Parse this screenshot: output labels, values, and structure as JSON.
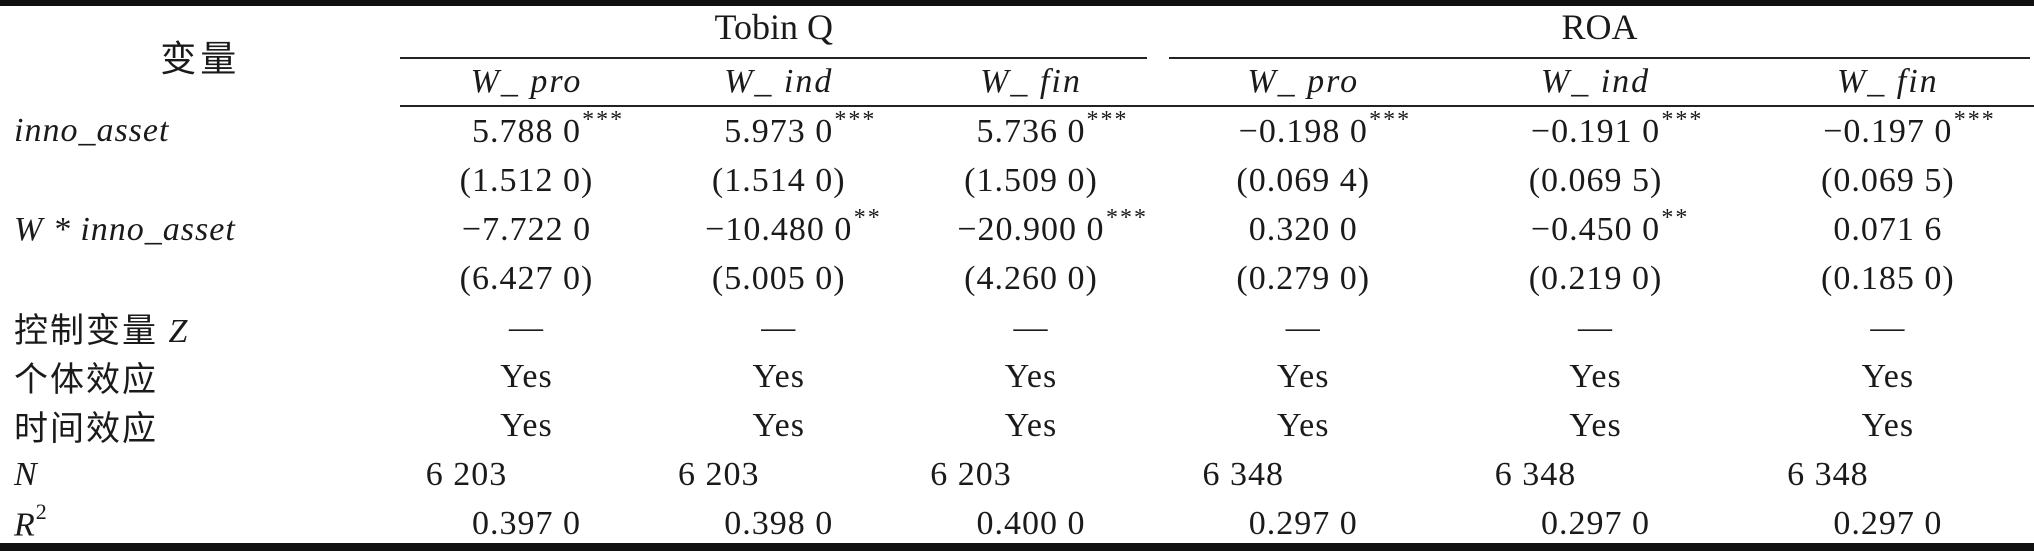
{
  "table": {
    "header": {
      "variable_label": "变量",
      "groups": [
        {
          "label": "Tobin Q"
        },
        {
          "label": "ROA"
        }
      ],
      "subheaders": [
        "W_ pro",
        "W_ ind",
        "W_ fin",
        "W_ pro",
        "W_ ind",
        "W_ fin"
      ]
    },
    "rows": [
      {
        "label_it": "inno_asset",
        "cells": [
          {
            "v": "5.788 0",
            "sup": "***"
          },
          {
            "v": "5.973 0",
            "sup": "***"
          },
          {
            "v": "5.736 0",
            "sup": "***"
          },
          {
            "v": "−0.198 0",
            "sup": "***"
          },
          {
            "v": "−0.191 0",
            "sup": "***"
          },
          {
            "v": "−0.197 0",
            "sup": "***"
          }
        ]
      },
      {
        "cells": [
          {
            "v": "(1.512 0)"
          },
          {
            "v": "(1.514 0)"
          },
          {
            "v": "(1.509 0)"
          },
          {
            "v": "(0.069 4)"
          },
          {
            "v": "(0.069 5)"
          },
          {
            "v": "(0.069 5)"
          }
        ]
      },
      {
        "label_it": "W * inno_asset",
        "cells": [
          {
            "v": "−7.722 0"
          },
          {
            "v": "−10.480 0",
            "sup": "**"
          },
          {
            "v": "−20.900 0",
            "sup": "***"
          },
          {
            "v": "0.320 0"
          },
          {
            "v": "−0.450 0",
            "sup": "**"
          },
          {
            "v": "0.071 6"
          }
        ]
      },
      {
        "cells": [
          {
            "v": "(6.427 0)"
          },
          {
            "v": "(5.005 0)"
          },
          {
            "v": "(4.260 0)"
          },
          {
            "v": "(0.279 0)"
          },
          {
            "v": "(0.219 0)"
          },
          {
            "v": "(0.185 0)"
          }
        ]
      },
      {
        "label": "控制变量 ",
        "label_it": "Z",
        "cells": [
          {
            "v": "—"
          },
          {
            "v": "—"
          },
          {
            "v": "—"
          },
          {
            "v": "—"
          },
          {
            "v": "—"
          },
          {
            "v": "—"
          }
        ]
      },
      {
        "label": "个体效应",
        "cells": [
          {
            "v": "Yes"
          },
          {
            "v": "Yes"
          },
          {
            "v": "Yes"
          },
          {
            "v": "Yes"
          },
          {
            "v": "Yes"
          },
          {
            "v": "Yes"
          }
        ]
      },
      {
        "label": "时间效应",
        "cells": [
          {
            "v": "Yes"
          },
          {
            "v": "Yes"
          },
          {
            "v": "Yes"
          },
          {
            "v": "Yes"
          },
          {
            "v": "Yes"
          },
          {
            "v": "Yes"
          }
        ]
      },
      {
        "label_it": "N",
        "cells": [
          {
            "v": "6 203"
          },
          {
            "v": "6 203"
          },
          {
            "v": "6 203"
          },
          {
            "v": "6 348"
          },
          {
            "v": "6 348"
          },
          {
            "v": "6 348"
          }
        ]
      },
      {
        "label_it": "R",
        "label_sup": "2",
        "cells": [
          {
            "v": "0.397 0"
          },
          {
            "v": "0.398 0"
          },
          {
            "v": "0.400 0"
          },
          {
            "v": "0.297 0"
          },
          {
            "v": "0.297 0"
          },
          {
            "v": "0.297 0"
          }
        ]
      }
    ]
  }
}
